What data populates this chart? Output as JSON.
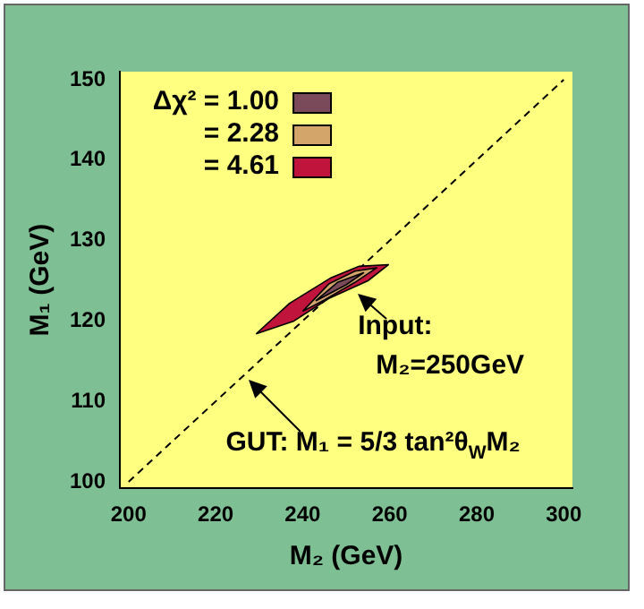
{
  "chart_data": {
    "type": "area",
    "xlabel": "M₂ (GeV)",
    "ylabel": "M₁ (GeV)",
    "xlim": [
      198,
      302
    ],
    "ylim": [
      99.2,
      151
    ],
    "xticks": [
      200,
      220,
      240,
      260,
      280,
      300
    ],
    "yticks": [
      100,
      110,
      120,
      130,
      140,
      150
    ],
    "grid": false,
    "legend": "top left",
    "series": [
      {
        "name": "Δχ² = 1.00",
        "color": "#7a4a5a",
        "x": [
          243,
          248,
          254,
          250,
          243
        ],
        "values": [
          122.5,
          124.8,
          126,
          124.5,
          122.5
        ]
      },
      {
        "name": "= 2.28",
        "color": "#d4a56a",
        "x": [
          240,
          246,
          252,
          257,
          252,
          245,
          240
        ],
        "values": [
          121.2,
          124.6,
          126.2,
          126.6,
          124.8,
          122.6,
          121.2
        ]
      },
      {
        "name": "= 4.61",
        "color": "#c0143c",
        "x": [
          229.3,
          237,
          246.6,
          253,
          259.7,
          255,
          246,
          238,
          229.3
        ],
        "values": [
          118.4,
          122.2,
          125.4,
          126.8,
          127,
          125,
          122.8,
          120,
          118.4
        ]
      },
      {
        "type": "line",
        "color": "#000000",
        "line_style": "dashed",
        "x": [
          200,
          300
        ],
        "values": [
          100,
          150
        ]
      }
    ],
    "annotations": [
      {
        "text": "Input:\nM₂=250GeV",
        "x": 252.7,
        "y": 123.3
      },
      {
        "text": "GUT: M₁ = 5/3 tan²θ$_{W}$M₂",
        "x": 227.7,
        "y": 112.8
      }
    ]
  }
}
